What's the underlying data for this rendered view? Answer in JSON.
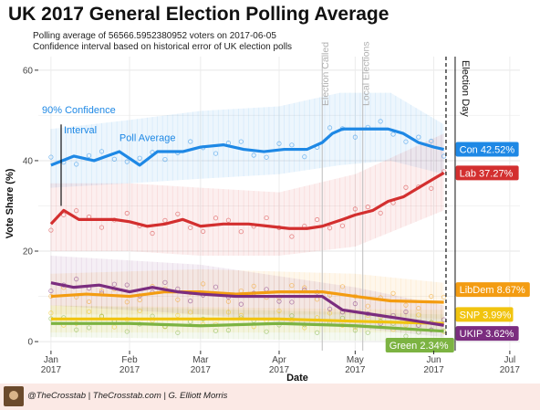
{
  "title": "UK 2017 General Election Polling Average",
  "subtitle_lines": [
    "Polling average of 56566.5952380952 voters on 2017-06-05",
    "Confidence interval based on historical error of UK election polls"
  ],
  "footer_credit": "@TheCrosstab | TheCrosstab.com | G. Elliott Morris",
  "chart_data": {
    "type": "line",
    "xlabel": "Date",
    "ylabel": "Vote Share (%)",
    "x_domain": [
      "2016-12-27",
      "2017-07-05"
    ],
    "ylim": [
      -2,
      63
    ],
    "y_ticks": [
      0,
      20,
      40,
      60
    ],
    "x_ticks": [
      {
        "date": "2017-01-01",
        "label": [
          "Jan",
          "2017"
        ]
      },
      {
        "date": "2017-02-01",
        "label": [
          "Feb",
          "2017"
        ]
      },
      {
        "date": "2017-03-01",
        "label": [
          "Mar",
          "2017"
        ]
      },
      {
        "date": "2017-04-01",
        "label": [
          "Apr",
          "2017"
        ]
      },
      {
        "date": "2017-05-01",
        "label": [
          "May",
          "2017"
        ]
      },
      {
        "date": "2017-06-01",
        "label": [
          "Jun",
          "2017"
        ]
      },
      {
        "date": "2017-07-01",
        "label": [
          "Jul",
          "2017"
        ]
      }
    ],
    "grid": true,
    "confidence_note": [
      "90% Confidence",
      "Interval"
    ],
    "poll_average_note": "Poll Average",
    "events": [
      {
        "label": "Election Called",
        "date": "2017-04-18",
        "style": "solid"
      },
      {
        "label": "Local Elections",
        "date": "2017-05-04",
        "style": "solid"
      },
      {
        "label": "Election Day",
        "date": "2017-06-08",
        "style": "dashed"
      }
    ],
    "series": [
      {
        "name": "Con",
        "end_label": "Con 42.52%",
        "color": "#1e88e5",
        "points": [
          [
            "2017-01-01",
            39
          ],
          [
            "2017-01-10",
            41
          ],
          [
            "2017-01-18",
            40
          ],
          [
            "2017-01-28",
            42
          ],
          [
            "2017-02-05",
            39
          ],
          [
            "2017-02-12",
            42
          ],
          [
            "2017-02-22",
            42
          ],
          [
            "2017-03-01",
            43
          ],
          [
            "2017-03-10",
            43.5
          ],
          [
            "2017-03-18",
            42.5
          ],
          [
            "2017-03-26",
            42
          ],
          [
            "2017-04-03",
            42.5
          ],
          [
            "2017-04-12",
            42.5
          ],
          [
            "2017-04-18",
            44
          ],
          [
            "2017-04-22",
            46
          ],
          [
            "2017-04-26",
            47
          ],
          [
            "2017-05-01",
            47
          ],
          [
            "2017-05-08",
            47
          ],
          [
            "2017-05-14",
            47
          ],
          [
            "2017-05-20",
            46
          ],
          [
            "2017-05-26",
            44
          ],
          [
            "2017-06-01",
            43
          ],
          [
            "2017-06-05",
            42.5
          ]
        ],
        "band": [
          [
            "2017-01-01",
            34,
            47
          ],
          [
            "2017-02-01",
            35,
            49
          ],
          [
            "2017-03-01",
            36,
            51
          ],
          [
            "2017-04-01",
            37,
            52
          ],
          [
            "2017-04-25",
            39,
            55
          ],
          [
            "2017-05-15",
            40,
            55
          ],
          [
            "2017-06-05",
            37,
            48
          ]
        ]
      },
      {
        "name": "Lab",
        "end_label": "Lab 37.27%",
        "color": "#d32f2f",
        "points": [
          [
            "2017-01-01",
            26
          ],
          [
            "2017-01-06",
            29
          ],
          [
            "2017-01-12",
            27
          ],
          [
            "2017-01-20",
            27
          ],
          [
            "2017-01-26",
            27
          ],
          [
            "2017-02-01",
            26.5
          ],
          [
            "2017-02-08",
            25.5
          ],
          [
            "2017-02-15",
            26
          ],
          [
            "2017-02-22",
            27
          ],
          [
            "2017-03-01",
            25.5
          ],
          [
            "2017-03-10",
            26
          ],
          [
            "2017-03-20",
            26
          ],
          [
            "2017-03-28",
            25.5
          ],
          [
            "2017-04-05",
            25
          ],
          [
            "2017-04-12",
            25
          ],
          [
            "2017-04-18",
            25.5
          ],
          [
            "2017-04-26",
            27
          ],
          [
            "2017-05-01",
            28
          ],
          [
            "2017-05-08",
            29
          ],
          [
            "2017-05-14",
            31
          ],
          [
            "2017-05-20",
            32
          ],
          [
            "2017-05-26",
            34
          ],
          [
            "2017-06-01",
            36
          ],
          [
            "2017-06-05",
            37.3
          ]
        ],
        "band": [
          [
            "2017-01-01",
            20,
            35
          ],
          [
            "2017-02-01",
            20,
            35
          ],
          [
            "2017-03-01",
            19,
            34
          ],
          [
            "2017-04-01",
            19,
            33
          ],
          [
            "2017-05-01",
            21,
            37
          ],
          [
            "2017-06-05",
            29,
            46
          ]
        ]
      },
      {
        "name": "LibDem",
        "end_label": "LibDem 8.67%",
        "color": "#f39c12",
        "points": [
          [
            "2017-01-01",
            10
          ],
          [
            "2017-01-15",
            10.5
          ],
          [
            "2017-02-01",
            10
          ],
          [
            "2017-02-15",
            11
          ],
          [
            "2017-03-01",
            11
          ],
          [
            "2017-03-15",
            10.5
          ],
          [
            "2017-04-01",
            11
          ],
          [
            "2017-04-18",
            11
          ],
          [
            "2017-05-01",
            10
          ],
          [
            "2017-05-15",
            9
          ],
          [
            "2017-06-05",
            8.7
          ]
        ],
        "band": [
          [
            "2017-01-01",
            6,
            15
          ],
          [
            "2017-03-01",
            6,
            16
          ],
          [
            "2017-05-01",
            6,
            15
          ],
          [
            "2017-06-05",
            5,
            13
          ]
        ]
      },
      {
        "name": "SNP",
        "end_label": "SNP 3.99%",
        "color": "#f1c40f",
        "points": [
          [
            "2017-01-01",
            5
          ],
          [
            "2017-02-01",
            5
          ],
          [
            "2017-03-01",
            5
          ],
          [
            "2017-04-01",
            5
          ],
          [
            "2017-05-01",
            4.5
          ],
          [
            "2017-06-05",
            4
          ]
        ],
        "band": [
          [
            "2017-01-01",
            2,
            8
          ],
          [
            "2017-06-05",
            2,
            7
          ]
        ]
      },
      {
        "name": "UKIP",
        "end_label": "UKIP 3.62%",
        "color": "#7b2d7f",
        "points": [
          [
            "2017-01-01",
            13
          ],
          [
            "2017-01-10",
            12
          ],
          [
            "2017-01-20",
            12.5
          ],
          [
            "2017-02-01",
            11
          ],
          [
            "2017-02-10",
            12
          ],
          [
            "2017-02-20",
            11
          ],
          [
            "2017-03-01",
            10.5
          ],
          [
            "2017-03-15",
            10
          ],
          [
            "2017-04-01",
            10
          ],
          [
            "2017-04-18",
            10
          ],
          [
            "2017-04-26",
            7
          ],
          [
            "2017-05-08",
            6
          ],
          [
            "2017-05-20",
            5
          ],
          [
            "2017-06-05",
            3.6
          ]
        ],
        "band": [
          [
            "2017-01-01",
            8,
            19
          ],
          [
            "2017-03-01",
            6,
            17
          ],
          [
            "2017-05-01",
            3,
            12
          ],
          [
            "2017-06-05",
            1,
            8
          ]
        ]
      },
      {
        "name": "Green",
        "end_label": "Green 2.34%",
        "color": "#7cb342",
        "points": [
          [
            "2017-01-01",
            4
          ],
          [
            "2017-02-01",
            4
          ],
          [
            "2017-03-01",
            3.5
          ],
          [
            "2017-04-01",
            4
          ],
          [
            "2017-05-01",
            3.5
          ],
          [
            "2017-06-05",
            2.3
          ]
        ],
        "band": [
          [
            "2017-01-01",
            1,
            8
          ],
          [
            "2017-06-05",
            0,
            6
          ]
        ]
      }
    ],
    "end_label_y": {
      "Con": 42.5,
      "Lab": 37.3,
      "LibDem": 11.5,
      "SNP": 6,
      "UKIP": 1.8,
      "Green": -0.8
    }
  }
}
